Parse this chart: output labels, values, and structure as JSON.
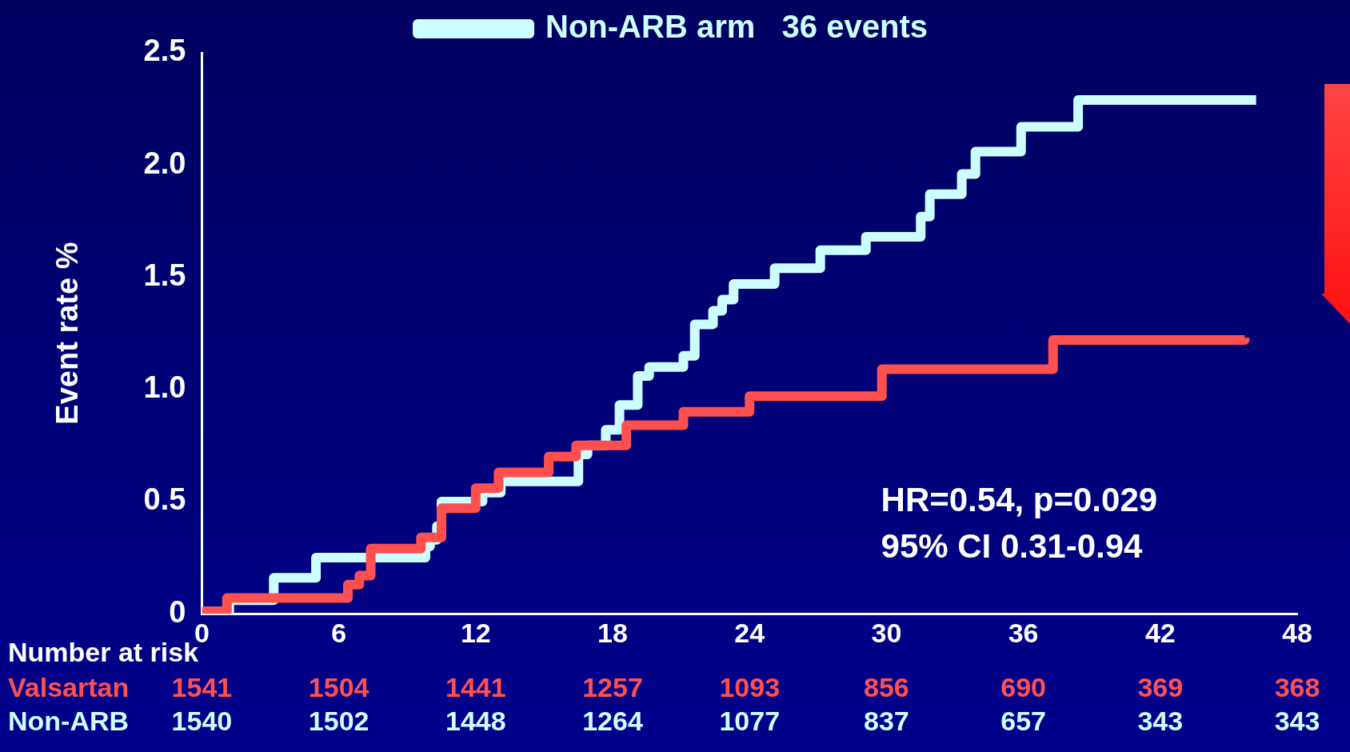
{
  "chart_data": {
    "type": "step",
    "ylabel": "Event rate %",
    "xlim": [
      0,
      48
    ],
    "xticks": [
      0,
      6,
      12,
      18,
      24,
      30,
      36,
      42,
      48
    ],
    "ylim": [
      0,
      2.5
    ],
    "yticks": [
      0,
      0.5,
      {
        "value": 1,
        "label": "1.0"
      },
      1.5,
      {
        "value": 2,
        "label": "2.0"
      },
      2.5
    ],
    "grid": false,
    "legend": "top",
    "marker": "none",
    "line_style": "solid",
    "series": [
      {
        "color": "#ff5050",
        "x": [
          0,
          1.1,
          6.4,
          6.9,
          7.4,
          9.6,
          10.5,
          12.0,
          13.0,
          15.2,
          16.4,
          18.6,
          21.1,
          24.0,
          29.8,
          37.3,
          45.7
        ],
        "values": [
          0.01,
          0.07,
          0.13,
          0.17,
          0.29,
          0.34,
          0.47,
          0.56,
          0.63,
          0.7,
          0.75,
          0.84,
          0.9,
          0.97,
          1.09,
          1.22,
          1.23
        ]
      },
      {
        "name": "Non-ARB arm   36 events",
        "color": "#ccffff",
        "x": [
          0,
          1.2,
          3.15,
          5.0,
          9.8,
          10.0,
          10.3,
          10.5,
          12.3,
          13.1,
          16.5,
          16.9,
          17.7,
          18.3,
          19.1,
          19.6,
          21.1,
          21.6,
          22.4,
          22.8,
          23.3,
          25.1,
          27.1,
          29.1,
          31.5,
          31.9,
          33.3,
          33.9,
          35.9,
          38.4,
          46.2
        ],
        "values": [
          0.01,
          0.06,
          0.16,
          0.25,
          0.3,
          0.33,
          0.39,
          0.5,
          0.54,
          0.59,
          0.71,
          0.75,
          0.82,
          0.93,
          1.06,
          1.1,
          1.15,
          1.29,
          1.35,
          1.4,
          1.47,
          1.54,
          1.62,
          1.68,
          1.77,
          1.87,
          1.96,
          2.06,
          2.17,
          2.29,
          2.29
        ]
      }
    ],
    "annotations": [
      "HR=0.54, p=0.029",
      "95% CI 0.31-0.94",
      "Number at risk",
      "Valsartan",
      "Non-ARB",
      "1541",
      "1504",
      "1441",
      "1257",
      "1093",
      "856",
      "690",
      "369",
      "368",
      "1540",
      "1502",
      "1448",
      "1264",
      "1077",
      "837",
      "657",
      "343",
      "343"
    ]
  }
}
